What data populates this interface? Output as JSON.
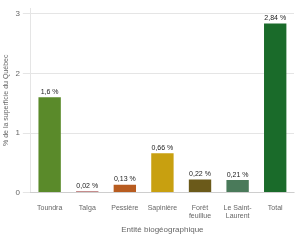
{
  "chart_data": {
    "type": "bar",
    "categories": [
      "Toundra",
      "Taïga",
      "Pessière",
      "Sapinière",
      "Forêt\nfeuillue",
      "Le Saint-\nLaurent",
      "Total"
    ],
    "values": [
      1.6,
      0.02,
      0.13,
      0.66,
      0.22,
      0.21,
      2.84
    ],
    "value_labels": [
      "1,6 %",
      "0,02 %",
      "0,13 %",
      "0,66 %",
      "0,22 %",
      "0,21 %",
      "2,84 %"
    ],
    "colors": [
      "#5a8a2a",
      "#8b1a1a",
      "#b85c20",
      "#c8a010",
      "#6b5a1a",
      "#4a7a5a",
      "#1a6b2a"
    ],
    "xlabel": "Entité biogéographique",
    "ylabel": "% de la superficie du Québec",
    "ylim": [
      0,
      3.1
    ],
    "yticks": [
      0,
      1,
      2,
      3
    ],
    "grid": true,
    "data_labels": true
  }
}
